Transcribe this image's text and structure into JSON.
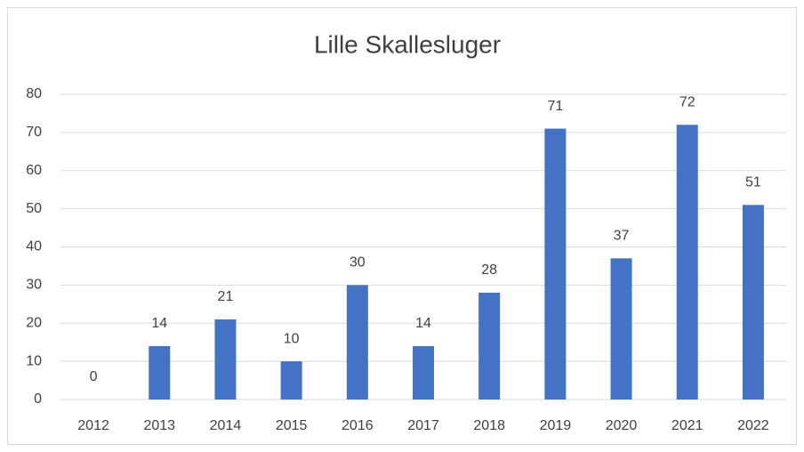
{
  "chart_data": {
    "type": "bar",
    "title": "Lille Skallesluger",
    "categories": [
      "2012",
      "2013",
      "2014",
      "2015",
      "2016",
      "2017",
      "2018",
      "2019",
      "2020",
      "2021",
      "2022"
    ],
    "values": [
      0,
      14,
      21,
      10,
      30,
      14,
      28,
      71,
      37,
      72,
      51
    ],
    "color": "#4472c4",
    "ylim": [
      0,
      80
    ],
    "yticks": [
      0,
      10,
      20,
      30,
      40,
      50,
      60,
      70,
      80
    ],
    "grid": true
  }
}
